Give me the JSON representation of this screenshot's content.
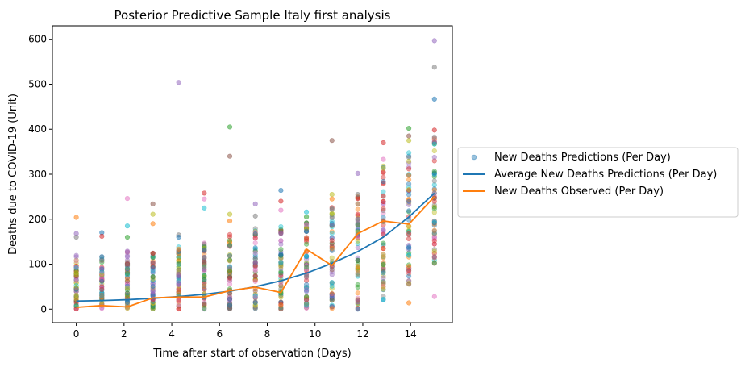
{
  "chart_data": {
    "type": "scatter",
    "title": "Posterior Predictive Sample Italy first analysis",
    "xlabel": "Time after start of observation (Days)",
    "ylabel": "Deaths due to COVID-19 (Unit)",
    "xlim": [
      -1.0,
      15.75
    ],
    "ylim": [
      -30,
      630
    ],
    "xticks": [
      0,
      2,
      4,
      6,
      8,
      10,
      12,
      14
    ],
    "yticks": [
      0,
      100,
      200,
      300,
      400,
      500,
      600
    ],
    "x": [
      0,
      1.07,
      2.14,
      3.21,
      4.29,
      5.36,
      6.43,
      7.5,
      8.57,
      9.64,
      10.71,
      11.79,
      12.86,
      13.93,
      15
    ],
    "series": [
      {
        "name": "Average New Deaths Predictions (Per Day)",
        "kind": "line",
        "color": "#1f77b4",
        "values": [
          18,
          19,
          21,
          24,
          28,
          33,
          40,
          50,
          63,
          80,
          102,
          128,
          160,
          205,
          258
        ]
      },
      {
        "name": "New Deaths Observed (Per Day)",
        "kind": "line",
        "color": "#ff7f0e",
        "values": [
          4,
          8,
          5,
          25,
          27,
          27,
          41,
          49,
          37,
          133,
          97,
          168,
          196,
          189,
          250
        ]
      }
    ],
    "predictions": {
      "name": "New Deaths Predictions (Per Day)",
      "kind": "scatter",
      "samples_per_day": 60,
      "ranges": [
        [
          0,
          120
        ],
        [
          0,
          120
        ],
        [
          0,
          130
        ],
        [
          0,
          130
        ],
        [
          0,
          140
        ],
        [
          0,
          150
        ],
        [
          0,
          170
        ],
        [
          0,
          180
        ],
        [
          0,
          190
        ],
        [
          0,
          200
        ],
        [
          0,
          230
        ],
        [
          0,
          250
        ],
        [
          20,
          320
        ],
        [
          50,
          360
        ],
        [
          100,
          390
        ]
      ],
      "outliers": [
        [
          0,
          204
        ],
        [
          0,
          168
        ],
        [
          0,
          160
        ],
        [
          1.07,
          170
        ],
        [
          1.07,
          162
        ],
        [
          2.14,
          246
        ],
        [
          2.14,
          185
        ],
        [
          2.14,
          160
        ],
        [
          3.21,
          234
        ],
        [
          3.21,
          211
        ],
        [
          3.21,
          190
        ],
        [
          4.29,
          504
        ],
        [
          4.29,
          165
        ],
        [
          4.29,
          160
        ],
        [
          5.36,
          258
        ],
        [
          5.36,
          245
        ],
        [
          5.36,
          225
        ],
        [
          6.43,
          405
        ],
        [
          6.43,
          340
        ],
        [
          6.43,
          211
        ],
        [
          6.43,
          196
        ],
        [
          7.5,
          234
        ],
        [
          7.5,
          207
        ],
        [
          8.57,
          264
        ],
        [
          8.57,
          240
        ],
        [
          8.57,
          220
        ],
        [
          9.64,
          216
        ],
        [
          9.64,
          205
        ],
        [
          10.71,
          375
        ],
        [
          10.71,
          255
        ],
        [
          10.71,
          245
        ],
        [
          11.79,
          302
        ],
        [
          11.79,
          255
        ],
        [
          11.79,
          0
        ],
        [
          12.86,
          370
        ],
        [
          12.86,
          333
        ],
        [
          12.86,
          22
        ],
        [
          13.93,
          402
        ],
        [
          13.93,
          385
        ],
        [
          13.93,
          375
        ],
        [
          13.93,
          14
        ],
        [
          15,
          597
        ],
        [
          15,
          538
        ],
        [
          15,
          467
        ],
        [
          15,
          398
        ],
        [
          15,
          28
        ]
      ],
      "colors": [
        "#1f77b4",
        "#ff7f0e",
        "#2ca02c",
        "#d62728",
        "#9467bd",
        "#8c564b",
        "#e377c2",
        "#7f7f7f",
        "#bcbd22",
        "#17becf"
      ]
    },
    "legend": {
      "placement": "center-right-outside",
      "entries": [
        "New Deaths Predictions (Per Day)",
        "Average New Deaths Predictions (Per Day)",
        "New Deaths Observed (Per Day)"
      ]
    },
    "grid": false
  }
}
